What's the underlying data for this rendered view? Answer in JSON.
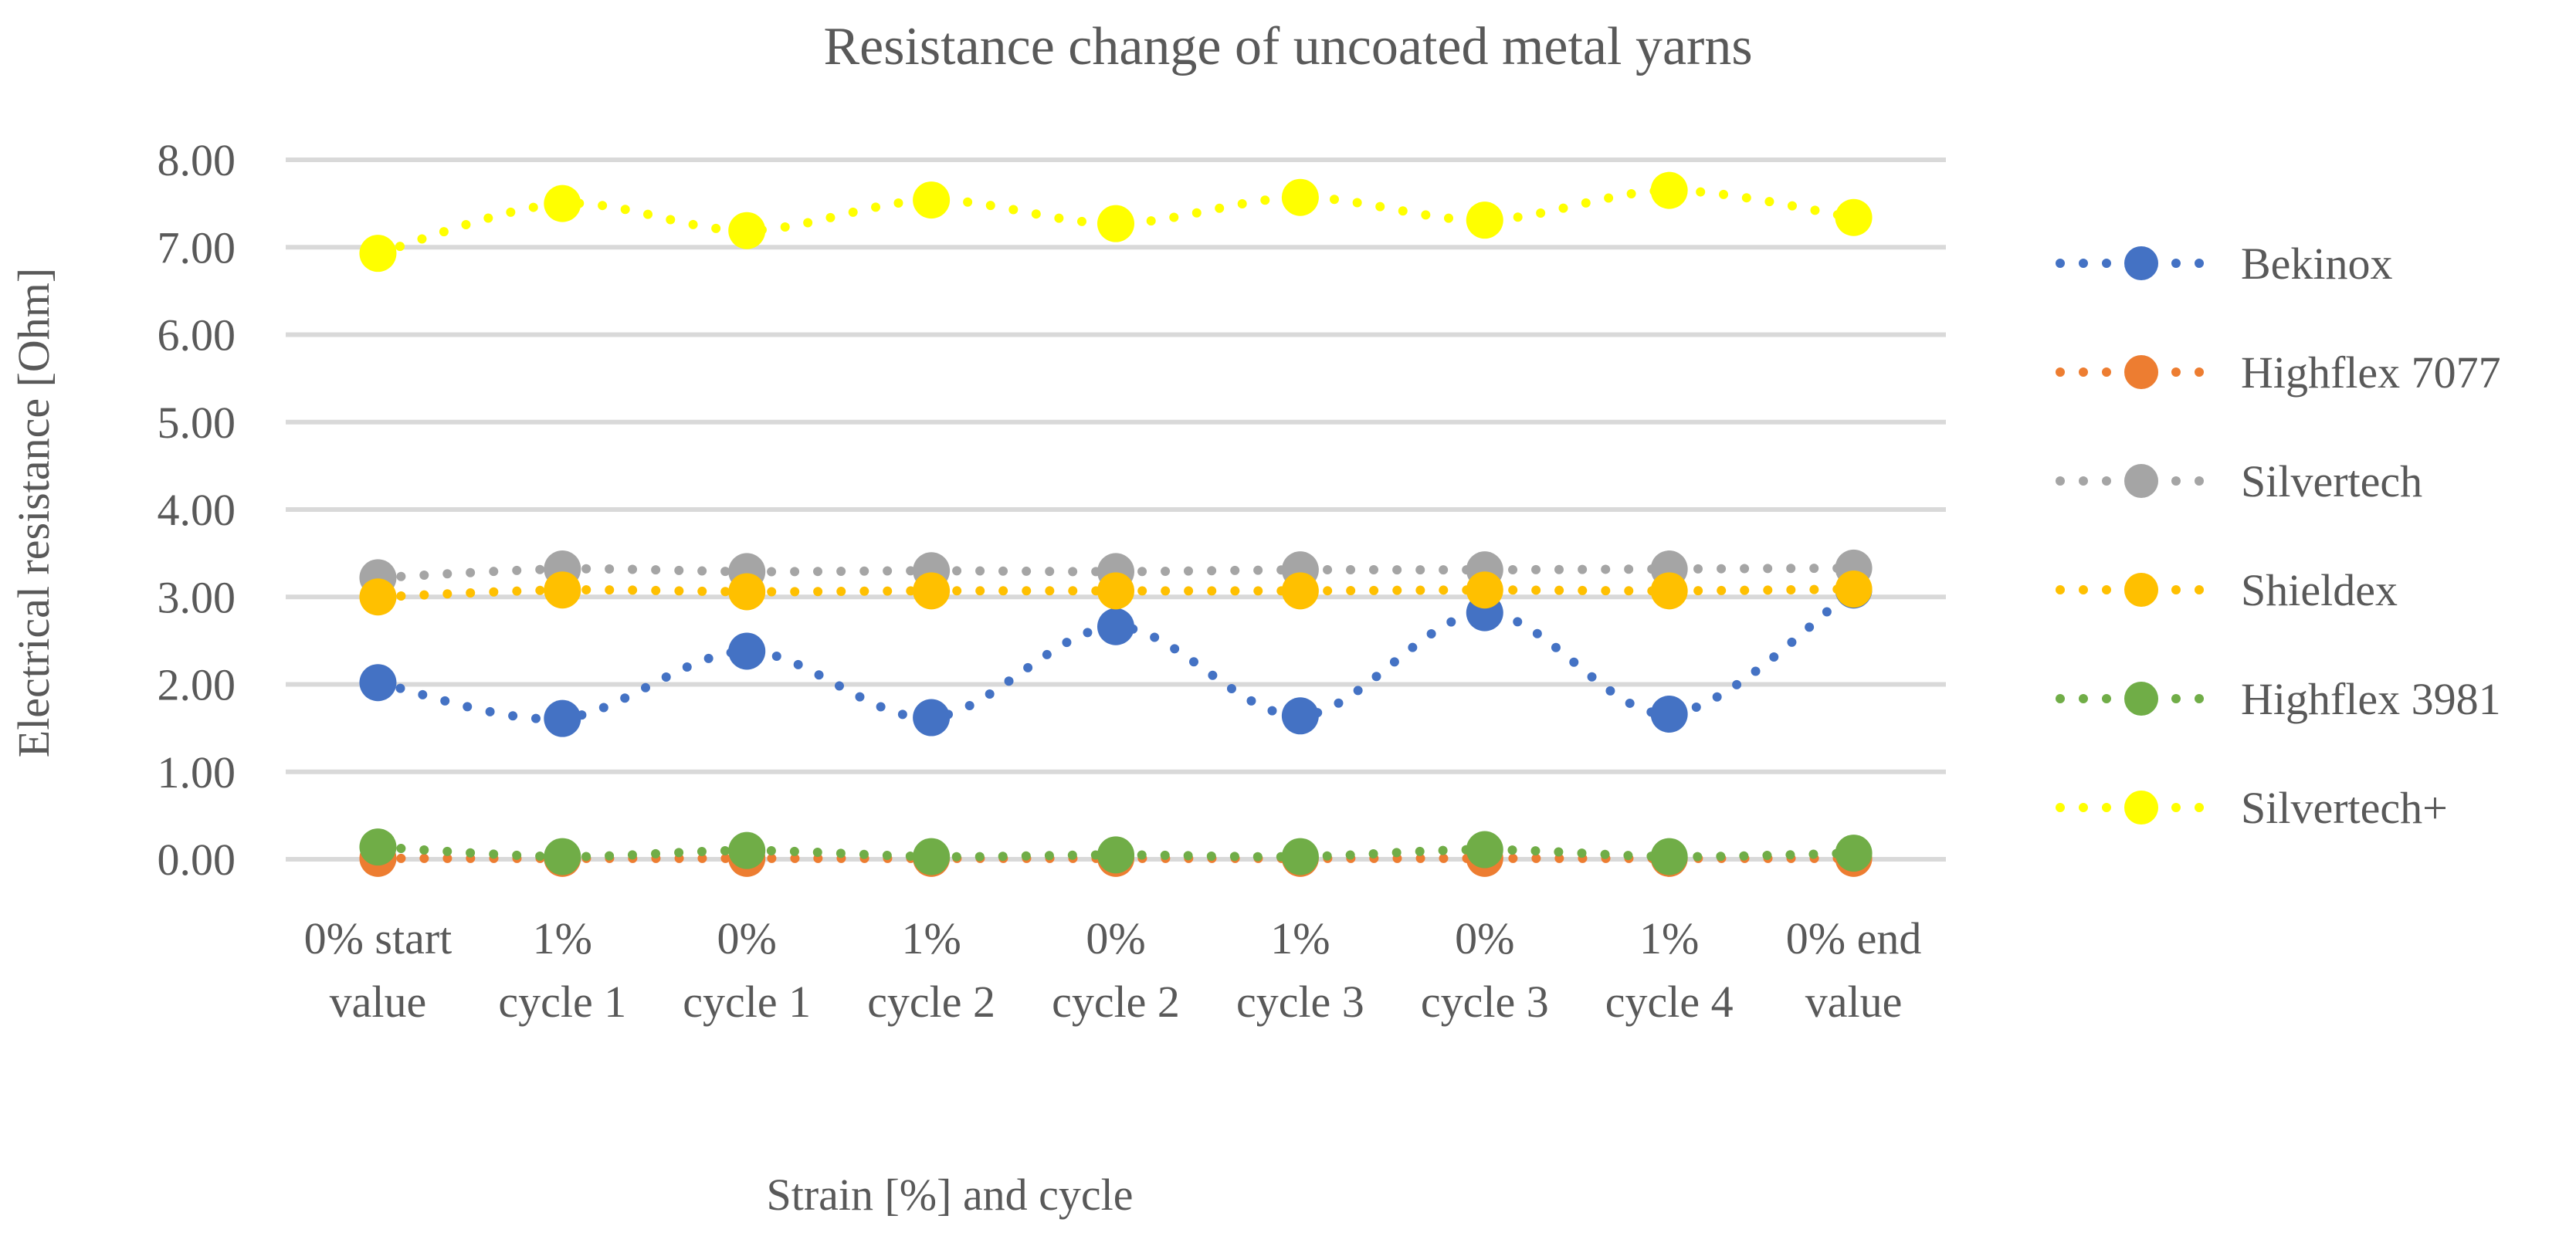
{
  "chart_data": {
    "type": "line",
    "title": "Resistance change of uncoated metal yarns",
    "xlabel": "Strain [%] and cycle",
    "ylabel": "Electrical resistance [Ohm]",
    "ylim": [
      0,
      8
    ],
    "ytick_step": 1,
    "ytick_labels": [
      "0.00",
      "1.00",
      "2.00",
      "3.00",
      "4.00",
      "5.00",
      "6.00",
      "7.00",
      "8.00"
    ],
    "categories": [
      [
        "0% start",
        "value"
      ],
      [
        "1%",
        "cycle 1"
      ],
      [
        "0%",
        "cycle 1"
      ],
      [
        "1%",
        "cycle 2"
      ],
      [
        "0%",
        "cycle 2"
      ],
      [
        "1%",
        "cycle 3"
      ],
      [
        "0%",
        "cycle 3"
      ],
      [
        "1%",
        "cycle 4"
      ],
      [
        "0% end",
        "value"
      ]
    ],
    "grid": true,
    "legend_position": "right",
    "series": [
      {
        "name": "Bekinox",
        "color": "#4472c4",
        "values": [
          2.02,
          1.61,
          2.38,
          1.62,
          2.66,
          1.64,
          2.82,
          1.66,
          3.08
        ]
      },
      {
        "name": "Highflex 7077",
        "color": "#ed7d31",
        "values": [
          0.01,
          0.01,
          0.01,
          0.01,
          0.01,
          0.01,
          0.01,
          0.01,
          0.01
        ]
      },
      {
        "name": "Silvertech",
        "color": "#a5a5a5",
        "values": [
          3.22,
          3.32,
          3.29,
          3.3,
          3.29,
          3.31,
          3.31,
          3.32,
          3.33
        ]
      },
      {
        "name": "Shieldex",
        "color": "#ffc000",
        "values": [
          3.0,
          3.08,
          3.06,
          3.07,
          3.07,
          3.07,
          3.08,
          3.07,
          3.09
        ]
      },
      {
        "name": "Highflex 3981",
        "color": "#70ad47",
        "values": [
          0.14,
          0.03,
          0.1,
          0.03,
          0.05,
          0.03,
          0.11,
          0.03,
          0.07
        ]
      },
      {
        "name": "Silvertech+",
        "color": "#ffff00",
        "values": [
          6.93,
          7.5,
          7.19,
          7.54,
          7.27,
          7.57,
          7.31,
          7.65,
          7.34
        ]
      }
    ]
  }
}
